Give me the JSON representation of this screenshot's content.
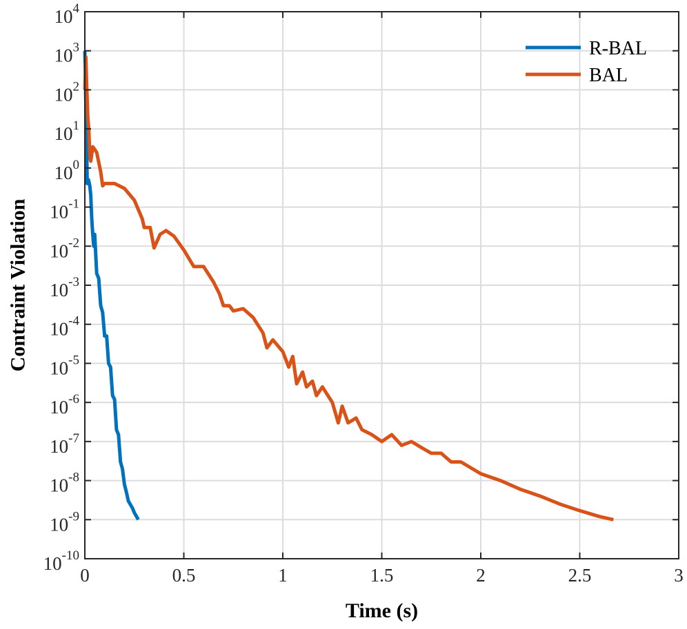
{
  "chart_data": {
    "type": "line",
    "title": "",
    "xlabel": "Time (s)",
    "ylabel": "Contraint Violation",
    "xlim": [
      0,
      3
    ],
    "ylim": [
      1e-10,
      10000
    ],
    "yscale": "log",
    "grid": true,
    "legend_position": "top-right",
    "x_ticks": [
      {
        "value": 0,
        "label": "0"
      },
      {
        "value": 0.5,
        "label": "0.5"
      },
      {
        "value": 1,
        "label": "1"
      },
      {
        "value": 1.5,
        "label": "1.5"
      },
      {
        "value": 2,
        "label": "2"
      },
      {
        "value": 2.5,
        "label": "2.5"
      },
      {
        "value": 3,
        "label": "3"
      }
    ],
    "y_ticks": [
      {
        "value": 1e-10,
        "base": "10",
        "exp": "-10"
      },
      {
        "value": 1e-09,
        "base": "10",
        "exp": "-9"
      },
      {
        "value": 1e-08,
        "base": "10",
        "exp": "-8"
      },
      {
        "value": 1e-07,
        "base": "10",
        "exp": "-7"
      },
      {
        "value": 1e-06,
        "base": "10",
        "exp": "-6"
      },
      {
        "value": 1e-05,
        "base": "10",
        "exp": "-5"
      },
      {
        "value": 0.0001,
        "base": "10",
        "exp": "-4"
      },
      {
        "value": 0.001,
        "base": "10",
        "exp": "-3"
      },
      {
        "value": 0.01,
        "base": "10",
        "exp": "-2"
      },
      {
        "value": 0.1,
        "base": "10",
        "exp": "-1"
      },
      {
        "value": 1,
        "base": "10",
        "exp": "0"
      },
      {
        "value": 10,
        "base": "10",
        "exp": "1"
      },
      {
        "value": 100,
        "base": "10",
        "exp": "2"
      },
      {
        "value": 1000,
        "base": "10",
        "exp": "3"
      },
      {
        "value": 10000,
        "base": "10",
        "exp": "4"
      }
    ],
    "series": [
      {
        "name": "R-BAL",
        "color": "#0072BD",
        "points": [
          [
            0.0,
            1000
          ],
          [
            0.005,
            50
          ],
          [
            0.01,
            2
          ],
          [
            0.012,
            0.4
          ],
          [
            0.018,
            0.5
          ],
          [
            0.025,
            0.35
          ],
          [
            0.03,
            0.2
          ],
          [
            0.035,
            0.05
          ],
          [
            0.04,
            0.02
          ],
          [
            0.045,
            0.01
          ],
          [
            0.05,
            0.02
          ],
          [
            0.055,
            0.006
          ],
          [
            0.06,
            0.002
          ],
          [
            0.07,
            0.0015
          ],
          [
            0.08,
            0.0003
          ],
          [
            0.09,
            0.0002
          ],
          [
            0.1,
            5e-05
          ],
          [
            0.11,
            5e-05
          ],
          [
            0.12,
            1e-05
          ],
          [
            0.13,
            8e-06
          ],
          [
            0.14,
            1.5e-06
          ],
          [
            0.15,
            1.2e-06
          ],
          [
            0.16,
            2e-07
          ],
          [
            0.17,
            1.5e-07
          ],
          [
            0.18,
            3e-08
          ],
          [
            0.19,
            2e-08
          ],
          [
            0.2,
            8e-09
          ],
          [
            0.21,
            5e-09
          ],
          [
            0.22,
            3e-09
          ],
          [
            0.24,
            2e-09
          ],
          [
            0.25,
            1.5e-09
          ],
          [
            0.27,
            1e-09
          ]
        ]
      },
      {
        "name": "BAL",
        "color": "#D95319",
        "points": [
          [
            0.0,
            100
          ],
          [
            0.005,
            700
          ],
          [
            0.01,
            100
          ],
          [
            0.015,
            20
          ],
          [
            0.02,
            10
          ],
          [
            0.025,
            2
          ],
          [
            0.03,
            1.5
          ],
          [
            0.04,
            3.5
          ],
          [
            0.05,
            3
          ],
          [
            0.06,
            2.5
          ],
          [
            0.08,
            0.8
          ],
          [
            0.09,
            0.35
          ],
          [
            0.1,
            0.4
          ],
          [
            0.15,
            0.4
          ],
          [
            0.2,
            0.3
          ],
          [
            0.25,
            0.15
          ],
          [
            0.29,
            0.05
          ],
          [
            0.3,
            0.03
          ],
          [
            0.33,
            0.03
          ],
          [
            0.35,
            0.009
          ],
          [
            0.38,
            0.02
          ],
          [
            0.41,
            0.025
          ],
          [
            0.45,
            0.018
          ],
          [
            0.5,
            0.008
          ],
          [
            0.55,
            0.003
          ],
          [
            0.6,
            0.003
          ],
          [
            0.65,
            0.0012
          ],
          [
            0.68,
            0.0006
          ],
          [
            0.7,
            0.0003
          ],
          [
            0.73,
            0.0003
          ],
          [
            0.75,
            0.00022
          ],
          [
            0.8,
            0.00025
          ],
          [
            0.85,
            0.00015
          ],
          [
            0.9,
            6e-05
          ],
          [
            0.92,
            2.5e-05
          ],
          [
            0.95,
            4e-05
          ],
          [
            1.0,
            2e-05
          ],
          [
            1.03,
            8e-06
          ],
          [
            1.05,
            1.5e-05
          ],
          [
            1.07,
            3e-06
          ],
          [
            1.1,
            6e-06
          ],
          [
            1.12,
            2.5e-06
          ],
          [
            1.15,
            3.5e-06
          ],
          [
            1.17,
            1.5e-06
          ],
          [
            1.2,
            2.5e-06
          ],
          [
            1.25,
            1e-06
          ],
          [
            1.28,
            3e-07
          ],
          [
            1.3,
            8e-07
          ],
          [
            1.33,
            3e-07
          ],
          [
            1.37,
            4e-07
          ],
          [
            1.4,
            2e-07
          ],
          [
            1.45,
            1.5e-07
          ],
          [
            1.5,
            1e-07
          ],
          [
            1.55,
            1.5e-07
          ],
          [
            1.6,
            8e-08
          ],
          [
            1.65,
            1e-07
          ],
          [
            1.7,
            7e-08
          ],
          [
            1.75,
            5e-08
          ],
          [
            1.8,
            5e-08
          ],
          [
            1.85,
            3e-08
          ],
          [
            1.9,
            3e-08
          ],
          [
            2.0,
            1.5e-08
          ],
          [
            2.1,
            1e-08
          ],
          [
            2.2,
            6e-09
          ],
          [
            2.3,
            4e-09
          ],
          [
            2.4,
            2.5e-09
          ],
          [
            2.5,
            1.7e-09
          ],
          [
            2.6,
            1.2e-09
          ],
          [
            2.67,
            1e-09
          ]
        ]
      }
    ]
  }
}
